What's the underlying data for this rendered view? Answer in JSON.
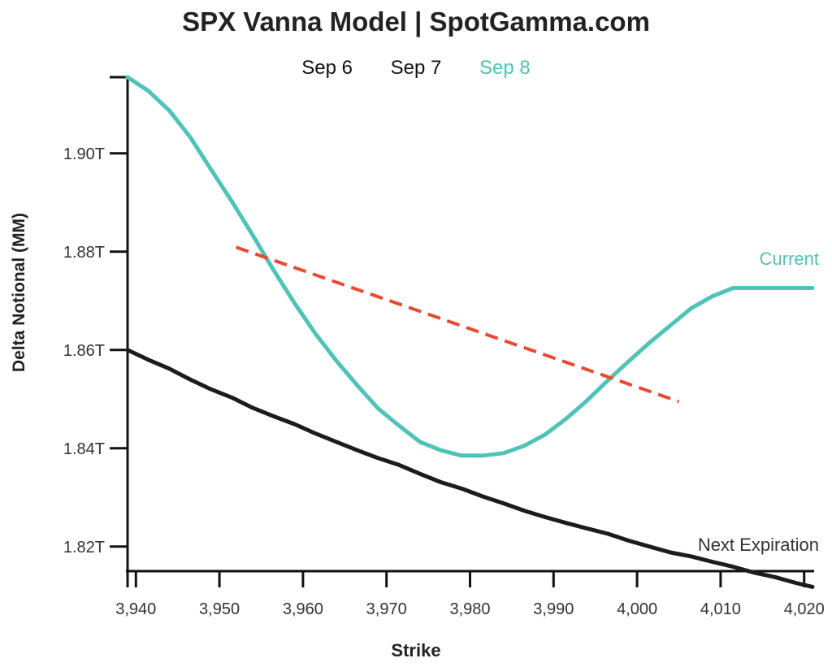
{
  "chart_data": {
    "type": "line",
    "title": "SPX Vanna Model | SpotGamma.com",
    "xlabel": "Strike",
    "ylabel": "Delta Notional (MM)",
    "xlim": [
      3939,
      4021
    ],
    "ylim": [
      1.815,
      1.9155
    ],
    "x_ticks": [
      3940,
      3950,
      3960,
      3970,
      3980,
      3990,
      4000,
      4010,
      4020
    ],
    "x_tick_labels": [
      "3,940",
      "3,950",
      "3,960",
      "3,970",
      "3,980",
      "3,990",
      "4,000",
      "4,010",
      "4,020"
    ],
    "y_ticks": [
      1.82,
      1.84,
      1.86,
      1.88,
      1.9
    ],
    "y_tick_labels": [
      "1.82T",
      "1.84T",
      "1.86T",
      "1.88T",
      "1.90T"
    ],
    "legend": {
      "placement": "top",
      "items": [
        {
          "label": "Sep 6",
          "color": "#111111"
        },
        {
          "label": "Sep 7",
          "color": "#111111"
        },
        {
          "label": "Sep 8",
          "color": "#4fc3b5"
        }
      ]
    },
    "series": [
      {
        "name": "Current",
        "color": "#4fc3b5",
        "x": [
          3939,
          3941.5,
          3944,
          3946.5,
          3949,
          3951.5,
          3954,
          3956.5,
          3959,
          3961.5,
          3964,
          3966.5,
          3969,
          3971.5,
          3974,
          3976.5,
          3979,
          3981.5,
          3984,
          3986.5,
          3989,
          3991.5,
          3994,
          3996.5,
          3999,
          4001.5,
          4004,
          4006.5,
          4009,
          4011.5,
          4014,
          4016.5,
          4019,
          4021
        ],
        "y": [
          1.9155,
          1.9127,
          1.9087,
          1.9033,
          1.8967,
          1.8902,
          1.8833,
          1.8762,
          1.8695,
          1.8633,
          1.8578,
          1.8528,
          1.8481,
          1.8446,
          1.8413,
          1.8396,
          1.8385,
          1.8385,
          1.839,
          1.8405,
          1.8428,
          1.846,
          1.8497,
          1.8538,
          1.8577,
          1.8615,
          1.865,
          1.8685,
          1.8709,
          1.8726,
          1.8726,
          1.8726,
          1.8726,
          1.8726
        ]
      },
      {
        "name": "Next Expiration",
        "color": "#1c1c1c",
        "x": [
          3939,
          3941.5,
          3944,
          3946.5,
          3949,
          3951.5,
          3954,
          3956.5,
          3959,
          3961.5,
          3964,
          3966.5,
          3969,
          3971.5,
          3974,
          3976.5,
          3979,
          3981.5,
          3984,
          3986.5,
          3989,
          3991.5,
          3994,
          3996.5,
          3999,
          4001.5,
          4004,
          4006.5,
          4009,
          4011.5,
          4014,
          4016.5,
          4019,
          4021
        ],
        "y": [
          1.86,
          1.858,
          1.8562,
          1.854,
          1.852,
          1.8503,
          1.8482,
          1.8465,
          1.8449,
          1.843,
          1.8413,
          1.8396,
          1.838,
          1.8366,
          1.8348,
          1.8331,
          1.8318,
          1.8302,
          1.8288,
          1.8273,
          1.826,
          1.8248,
          1.8237,
          1.8226,
          1.8212,
          1.82,
          1.8188,
          1.818,
          1.8169,
          1.8159,
          1.8147,
          1.8138,
          1.8126,
          1.8118
        ]
      }
    ],
    "trendline": {
      "color": "#e84a2f",
      "style": "dashed",
      "x": [
        3952,
        4005
      ],
      "y": [
        1.8809,
        1.8495
      ]
    },
    "annotations": [
      {
        "text": "Current",
        "color": "#4fc3b5"
      },
      {
        "text": "Next Expiration",
        "color": "#333333"
      }
    ]
  }
}
